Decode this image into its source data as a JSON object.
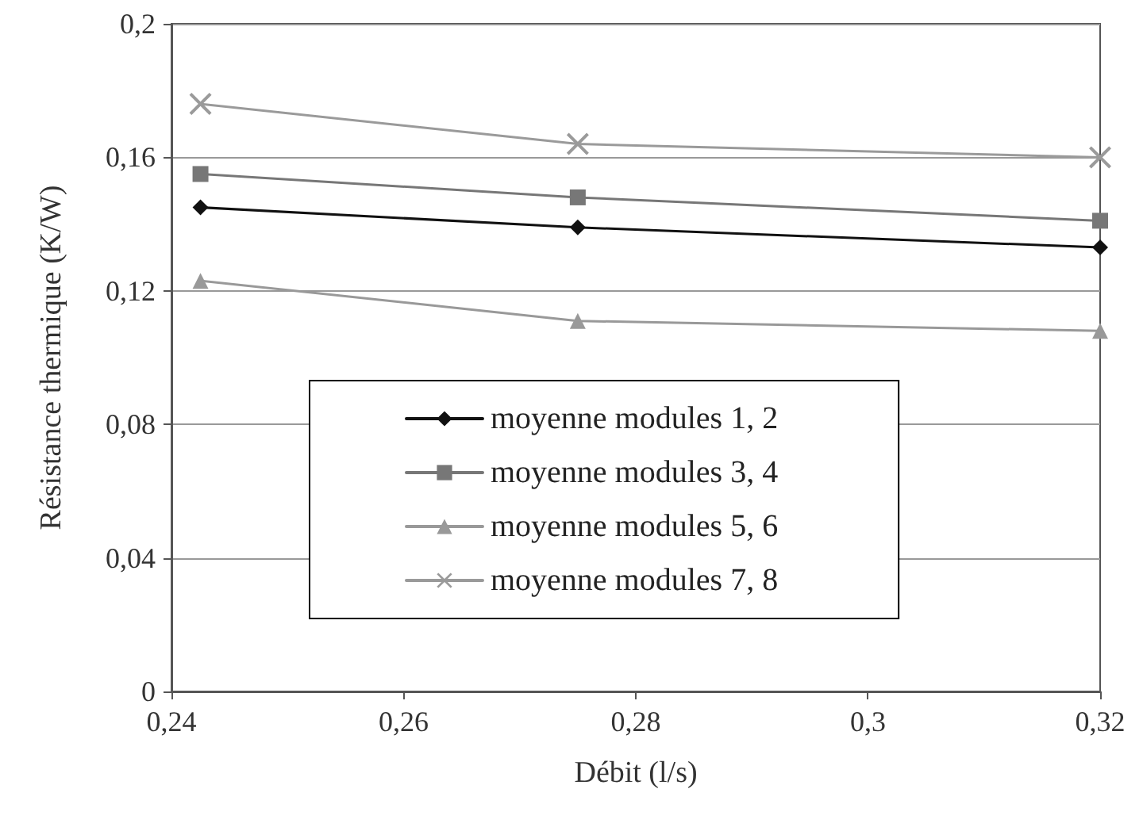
{
  "chart_data": {
    "type": "line",
    "xlabel": "Débit (l/s)",
    "ylabel": "Résistance thermique (K/W)",
    "x": [
      0.2425,
      0.275,
      0.32
    ],
    "series": [
      {
        "name": "moyenne modules 1, 2",
        "color": "#111111",
        "marker": "diamond",
        "values": [
          0.145,
          0.139,
          0.133
        ]
      },
      {
        "name": "moyenne modules 3, 4",
        "color": "#777777",
        "marker": "square",
        "values": [
          0.155,
          0.148,
          0.141
        ]
      },
      {
        "name": "moyenne modules 5, 6",
        "color": "#999999",
        "marker": "triangle",
        "values": [
          0.123,
          0.111,
          0.108
        ]
      },
      {
        "name": "moyenne modules 7, 8",
        "color": "#9a9a9a",
        "marker": "cross",
        "values": [
          0.176,
          0.164,
          0.16
        ]
      }
    ],
    "xlim": [
      0.24,
      0.32
    ],
    "xticks": [
      {
        "value": 0.24,
        "label": "0,24"
      },
      {
        "value": 0.26,
        "label": "0,26"
      },
      {
        "value": 0.28,
        "label": "0,28"
      },
      {
        "value": 0.3,
        "label": "0,3"
      },
      {
        "value": 0.32,
        "label": "0,32"
      }
    ],
    "ylim": [
      0,
      0.2
    ],
    "yticks": [
      0,
      {
        "value": 0.04,
        "label": "0,04"
      },
      {
        "value": 0.08,
        "label": "0,08"
      },
      {
        "value": 0.12,
        "label": "0,12"
      },
      {
        "value": 0.16,
        "label": "0,16"
      },
      {
        "value": 0.2,
        "label": "0,2"
      }
    ],
    "grid": "y",
    "legend": "center",
    "line_style": "solid"
  }
}
